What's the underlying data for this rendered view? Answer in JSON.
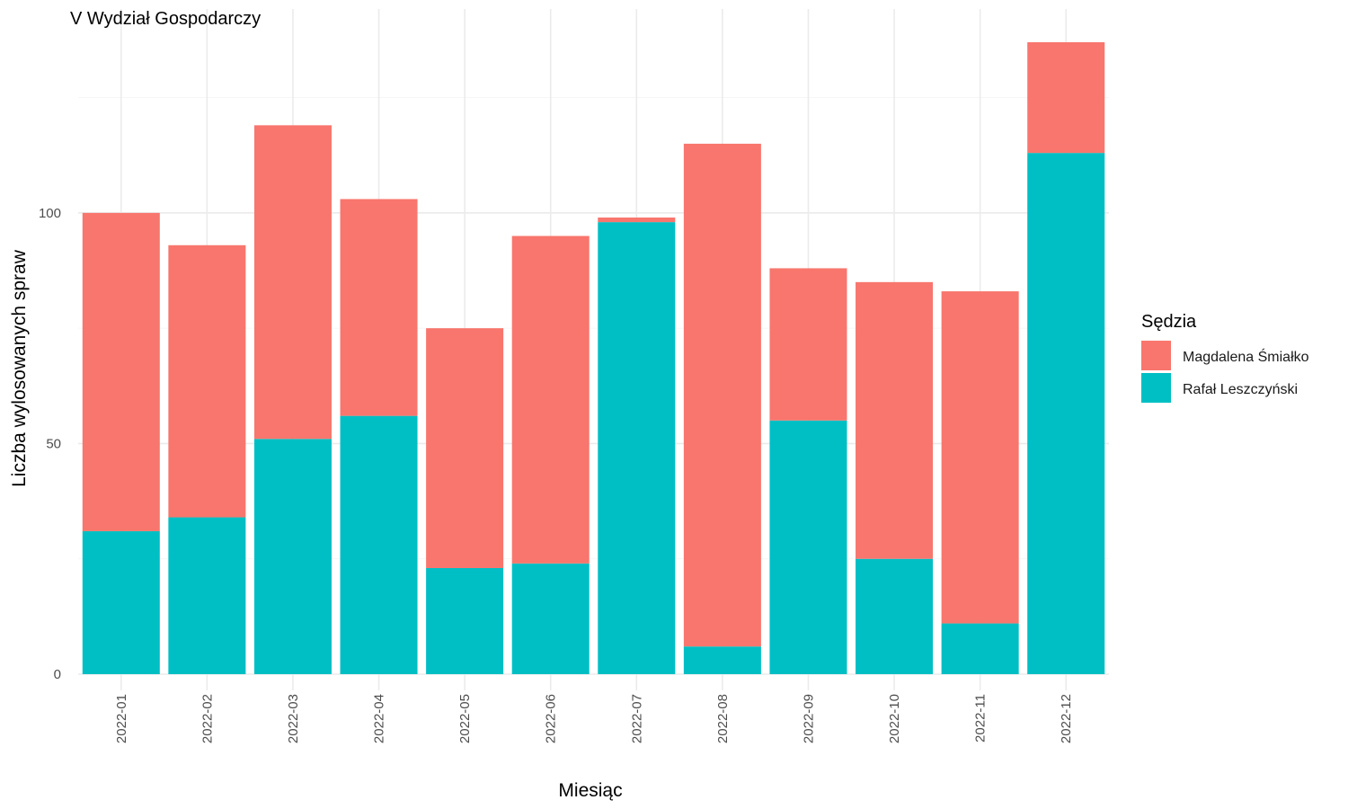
{
  "chart_data": {
    "type": "bar",
    "stacked": true,
    "title": "V Wydział Gospodarczy",
    "xlabel": "Miesiąc",
    "ylabel": "Liczba wylosowanych spraw",
    "categories": [
      "2022-01",
      "2022-02",
      "2022-03",
      "2022-04",
      "2022-05",
      "2022-06",
      "2022-07",
      "2022-08",
      "2022-09",
      "2022-10",
      "2022-11",
      "2022-12"
    ],
    "series": [
      {
        "name": "Rafał Leszczyński",
        "color": "#00BFC4",
        "values": [
          31,
          34,
          51,
          56,
          23,
          24,
          98,
          6,
          55,
          25,
          11,
          113
        ]
      },
      {
        "name": "Magdalena Śmiałko",
        "color": "#F8766D",
        "values": [
          69,
          59,
          68,
          47,
          52,
          71,
          1,
          109,
          33,
          60,
          72,
          24
        ]
      }
    ],
    "yticks": [
      0,
      50,
      100
    ],
    "ylim": [
      0,
      137
    ],
    "grid": true,
    "legend": {
      "title": "Sędzia",
      "position": "right",
      "items": [
        "Magdalena Śmiałko",
        "Rafał Leszczyński"
      ]
    }
  }
}
